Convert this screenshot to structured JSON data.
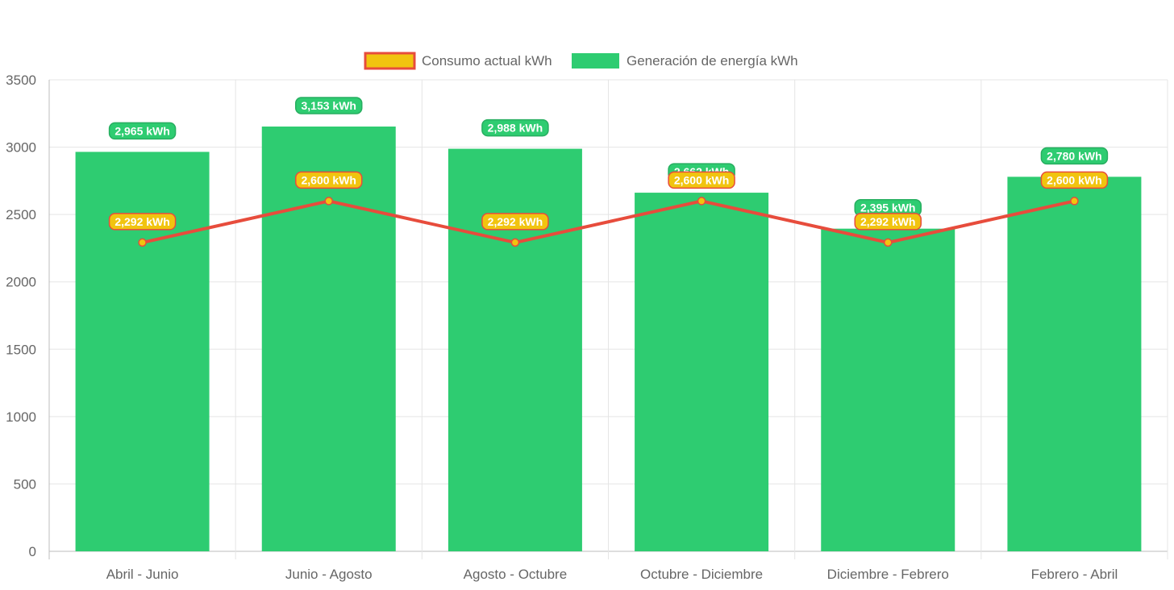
{
  "chart_data": {
    "type": "bar",
    "categories": [
      "Abril - Junio",
      "Junio - Agosto",
      "Agosto - Octubre",
      "Octubre - Diciembre",
      "Diciembre - Febrero",
      "Febrero - Abril"
    ],
    "series": [
      {
        "name": "Consumo actual kWh",
        "type": "line",
        "values": [
          2292,
          2600,
          2292,
          2600,
          2292,
          2600
        ],
        "data_labels": [
          "2,292 kWh",
          "2,600 kWh",
          "2,292 kWh",
          "2,600 kWh",
          "2,292 kWh",
          "2,600 kWh"
        ],
        "color": "#e74c3c",
        "fill_color": "#f1c40f",
        "label_color": "#f39c12"
      },
      {
        "name": "Generación de energía kWh",
        "type": "bar",
        "values": [
          2965,
          3153,
          2988,
          2662,
          2395,
          2780
        ],
        "data_labels": [
          "2,965 kWh",
          "3,153 kWh",
          "2,988 kWh",
          "2,662 kWh",
          "2,395 kWh",
          "2,780 kWh"
        ],
        "color": "#2ecc71",
        "label_color": "#2ecc71"
      }
    ],
    "y_ticks": [
      "3500",
      "3000",
      "2500",
      "2000",
      "1500",
      "1000",
      "500",
      "0"
    ],
    "ylim": [
      0,
      3500
    ],
    "grid": true,
    "legend_position": "top-center"
  }
}
